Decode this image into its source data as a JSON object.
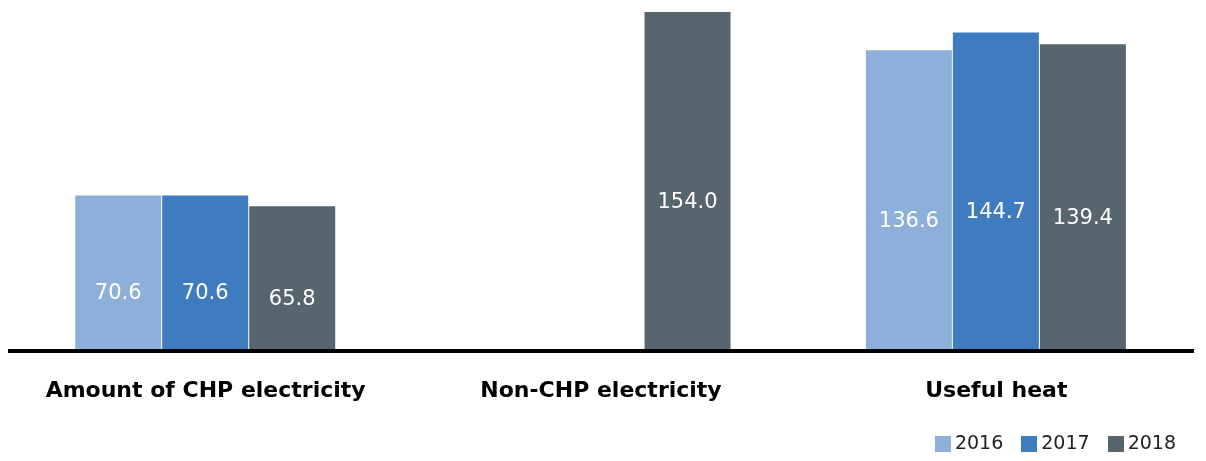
{
  "chart_data": {
    "type": "bar",
    "categories": [
      "Amount of CHP electricity",
      "Non-CHP electricity",
      "Useful heat"
    ],
    "series": [
      {
        "name": "2016",
        "color": "#8db0da",
        "values": [
          70.6,
          null,
          136.6
        ],
        "value_labels": [
          "70.6",
          null,
          "136.6"
        ]
      },
      {
        "name": "2017",
        "color": "#3f7bbf",
        "values": [
          70.6,
          null,
          144.7
        ],
        "value_labels": [
          "70.6",
          null,
          "144.7"
        ]
      },
      {
        "name": "2018",
        "color": "#56656e",
        "values": [
          65.8,
          154.0,
          139.4
        ],
        "value_labels": [
          "65.8",
          "154.0",
          "139.4"
        ]
      }
    ],
    "legend": "bottom right",
    "grid": false
  }
}
